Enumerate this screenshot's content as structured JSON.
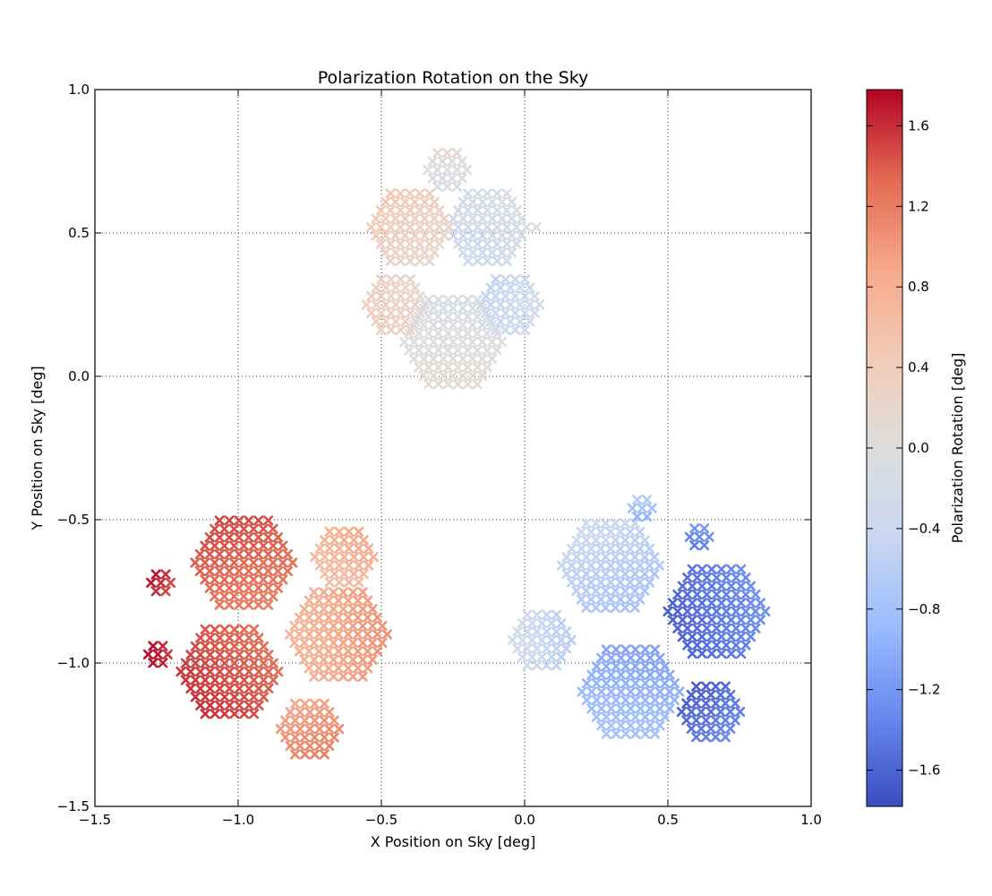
{
  "chart_data": {
    "type": "scatter",
    "title": "Polarization Rotation on the Sky",
    "xlabel": "X Position on Sky [deg]",
    "ylabel": "Y Position on Sky [deg]",
    "xlim": [
      -1.5,
      1.0
    ],
    "ylim": [
      -1.5,
      1.0
    ],
    "xticks": [
      -1.5,
      -1.0,
      -0.5,
      0.0,
      0.5,
      1.0
    ],
    "yticks": [
      -1.5,
      -1.0,
      -0.5,
      0.0,
      0.5,
      1.0
    ],
    "xtick_labels": [
      "−1.5",
      "−1.0",
      "−0.5",
      "0.0",
      "0.5",
      "1.0"
    ],
    "ytick_labels": [
      "−1.5",
      "−1.0",
      "−0.5",
      "0.0",
      "0.5",
      "1.0"
    ],
    "grid": true,
    "marker": "cross-shaped detector pixels",
    "colormap": "coolwarm",
    "colormap_colors": [
      "#3b4cc0",
      "#6788ee",
      "#9abbff",
      "#c9d7f0",
      "#dddddd",
      "#f2cbb7",
      "#f7a889",
      "#e26952",
      "#b40426"
    ],
    "colorbar": {
      "label": "Polarization Rotation [deg]",
      "range": [
        -1.78,
        1.78
      ],
      "ticks": [
        -1.6,
        -1.2,
        -0.8,
        -0.4,
        0.0,
        0.4,
        0.8,
        1.2,
        1.6
      ],
      "tick_labels": [
        "−1.6",
        "−1.2",
        "−0.8",
        "−0.4",
        "0.0",
        "0.4",
        "0.8",
        "1.2",
        "1.6"
      ]
    },
    "clusters": [
      {
        "name": "top cluster",
        "center": [
          -0.25,
          0.33
        ],
        "value_range": [
          -0.6,
          0.55
        ],
        "modules": [
          {
            "center": [
              -0.13,
              0.52
            ],
            "radius": 0.17,
            "value_at_center": -0.25
          },
          {
            "center": [
              -0.4,
              0.52
            ],
            "radius": 0.16,
            "value_at_center": 0.35
          },
          {
            "center": [
              -0.27,
              0.72
            ],
            "radius": 0.08,
            "value_at_center": 0.0
          },
          {
            "center": [
              -0.45,
              0.25
            ],
            "radius": 0.13,
            "value_at_center": 0.3
          },
          {
            "center": [
              -0.05,
              0.25
            ],
            "radius": 0.13,
            "value_at_center": -0.4
          },
          {
            "center": [
              -0.25,
              0.12
            ],
            "radius": 0.19,
            "value_at_center": 0.0
          }
        ]
      },
      {
        "name": "bottom-left cluster",
        "center": [
          -0.87,
          -0.9
        ],
        "value_range": [
          0.55,
          1.75
        ],
        "modules": [
          {
            "center": [
              -0.98,
              -0.65
            ],
            "radius": 0.19,
            "value_at_center": 1.35
          },
          {
            "center": [
              -0.63,
              -0.63
            ],
            "radius": 0.13,
            "value_at_center": 0.75
          },
          {
            "center": [
              -0.65,
              -0.9
            ],
            "radius": 0.19,
            "value_at_center": 0.9
          },
          {
            "center": [
              -1.03,
              -1.03
            ],
            "radius": 0.19,
            "value_at_center": 1.45
          },
          {
            "center": [
              -0.75,
              -1.23
            ],
            "radius": 0.13,
            "value_at_center": 1.05
          },
          {
            "center": [
              -1.27,
              -0.72
            ],
            "radius": 0.05,
            "value_at_center": 1.6
          },
          {
            "center": [
              -1.28,
              -0.97
            ],
            "radius": 0.05,
            "value_at_center": 1.7
          }
        ]
      },
      {
        "name": "bottom-right cluster",
        "center": [
          0.43,
          -0.9
        ],
        "value_range": [
          -1.75,
          -0.3
        ],
        "modules": [
          {
            "center": [
              0.3,
              -0.66
            ],
            "radius": 0.18,
            "value_at_center": -0.6
          },
          {
            "center": [
              0.67,
              -0.82
            ],
            "radius": 0.19,
            "value_at_center": -1.45
          },
          {
            "center": [
              0.37,
              -1.1
            ],
            "radius": 0.19,
            "value_at_center": -0.95
          },
          {
            "center": [
              0.06,
              -0.92
            ],
            "radius": 0.12,
            "value_at_center": -0.45
          },
          {
            "center": [
              0.65,
              -1.17
            ],
            "radius": 0.13,
            "value_at_center": -1.5
          },
          {
            "center": [
              0.61,
              -0.56
            ],
            "radius": 0.06,
            "value_at_center": -1.3
          },
          {
            "center": [
              0.41,
              -0.46
            ],
            "radius": 0.04,
            "value_at_center": -0.8
          }
        ]
      }
    ]
  }
}
